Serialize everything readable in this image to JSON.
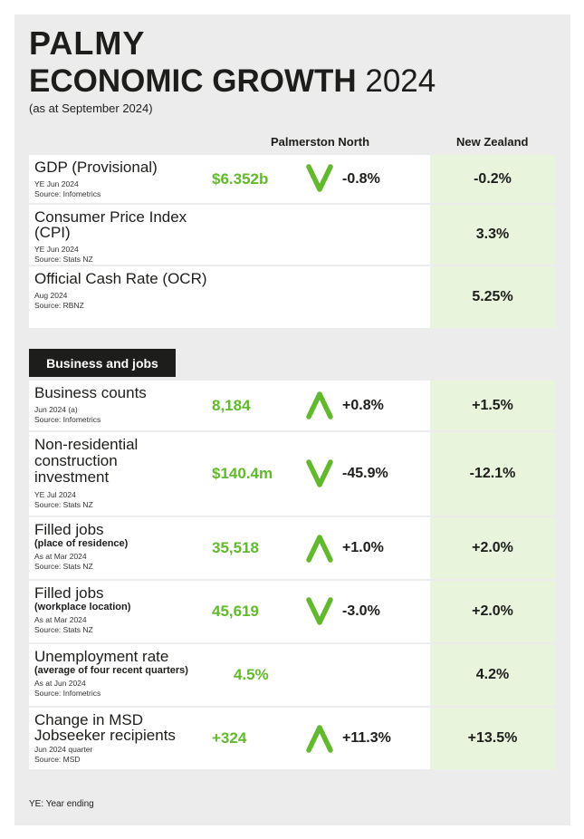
{
  "brand": "PALMY",
  "headline": {
    "title": "ECONOMIC GROWTH",
    "year": "2024"
  },
  "as_at": "(as at September 2024)",
  "columns": {
    "local": "Palmerston North",
    "national": "New Zealand"
  },
  "section_business": "Business and jobs",
  "rows": [
    {
      "title": "GDP (Provisional)",
      "subtitle": "",
      "meta1": "YE Jun 2024",
      "meta2": "Source: Infometrics",
      "value": "$6.352b",
      "direction": "down",
      "change": "-0.8%",
      "nz": "-0.2%"
    },
    {
      "title": "Consumer Price Index (CPI)",
      "subtitle": "",
      "meta1": "YE Jun 2024",
      "meta2": "Source: Stats NZ",
      "value": "",
      "direction": "",
      "change": "",
      "nz": "3.3%"
    },
    {
      "title": "Official Cash Rate (OCR)",
      "subtitle": "",
      "meta1": "Aug 2024",
      "meta2": "Source: RBNZ",
      "value": "",
      "direction": "",
      "change": "",
      "nz": "5.25%"
    },
    {
      "title": "Business counts",
      "subtitle": "",
      "meta1": "Jun 2024 (a)",
      "meta2": "Source: Infometrics",
      "value": "8,184",
      "direction": "up",
      "change": "+0.8%",
      "nz": "+1.5%"
    },
    {
      "title": "Non-residential construction investment",
      "subtitle": "",
      "meta1": "YE Jul 2024",
      "meta2": "Source: Stats NZ",
      "value": "$140.4m",
      "direction": "down",
      "change": "-45.9%",
      "nz": "-12.1%"
    },
    {
      "title": "Filled jobs",
      "subtitle": "(place of residence)",
      "meta1": "As at Mar 2024",
      "meta2": "Source: Stats NZ",
      "value": "35,518",
      "direction": "up",
      "change": "+1.0%",
      "nz": "+2.0%"
    },
    {
      "title": "Filled jobs",
      "subtitle": "(workplace location)",
      "meta1": "As at Mar 2024",
      "meta2": "Source: Stats NZ",
      "value": "45,619",
      "direction": "down",
      "change": "-3.0%",
      "nz": "+2.0%"
    },
    {
      "title": "Unemployment rate",
      "subtitle": "(average of four recent quarters)",
      "meta1": "As at Jun 2024",
      "meta2": "Source: Infometrics",
      "value": "4.5%",
      "direction": "",
      "change": "",
      "nz": "4.2%"
    },
    {
      "title": "Change in MSD Jobseeker recipients",
      "subtitle": "",
      "meta1": "Jun 2024 quarter",
      "meta2": "Source: MSD",
      "value": "+324",
      "direction": "up",
      "change": "+11.3%",
      "nz": "+13.5%"
    }
  ],
  "footnote": "YE: Year ending",
  "colors": {
    "accent": "#62b92e",
    "nz_cell": "#e8f4dc",
    "dark": "#1d1d1b",
    "panel": "#ececec"
  }
}
